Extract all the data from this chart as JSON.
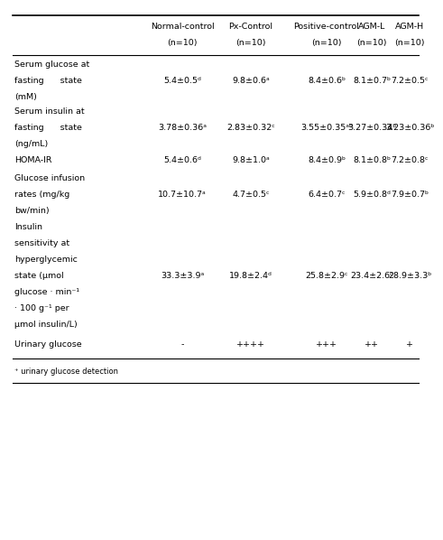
{
  "footnote": "⁺ urinary glucose detection",
  "col_headers_line1": [
    "Normal-control",
    "Px-Control",
    "Positive-control",
    "AGM-L",
    "AGM-H"
  ],
  "col_headers_line2": [
    "(n=10)",
    "(n=10)",
    "(n=10)",
    "(n=10)",
    "(n=10)"
  ],
  "rows": [
    {
      "label_lines": [
        "Serum glucose at",
        "fasting      state",
        "(mM)"
      ],
      "val_line": 1,
      "bold": false,
      "values": [
        "5.4±0.5ᵈ",
        "9.8±0.6ᵃ",
        "8.4±0.6ᵇ",
        "8.1±0.7ᵇ",
        "7.2±0.5ᶜ"
      ]
    },
    {
      "label_lines": [
        "Serum insulin at",
        "fasting      state",
        "(ng/mL)"
      ],
      "val_line": 1,
      "bold": false,
      "values": [
        "3.78±0.36ᵃ",
        "2.83±0.32ᶜ",
        "3.55±0.35ᵃᵇ",
        "3.27±0.34ᵇ",
        "3.23±0.36ᵇ"
      ]
    },
    {
      "label_lines": [
        "HOMA-IR"
      ],
      "val_line": 0,
      "bold": false,
      "values": [
        "5.4±0.6ᵈ",
        "9.8±1.0ᵃ",
        "8.4±0.9ᵇ",
        "8.1±0.8ᵇ",
        "7.2±0.8ᶜ"
      ]
    },
    {
      "label_lines": [
        "Glucose infusion",
        "rates (mg/kg",
        "bw/min)"
      ],
      "val_line": 1,
      "bold": false,
      "values": [
        "10.7±10.7ᵃ",
        "4.7±0.5ᶜ",
        "6.4±0.7ᶜ",
        "5.9±0.8ᵈ",
        "7.9±0.7ᵇ"
      ]
    },
    {
      "label_lines": [
        "Insulin",
        "sensitivity at",
        "hyperglycemic",
        "state (μmol",
        "glucose · min⁻¹",
        "· 100 g⁻¹ per",
        "μmol insulin/L)"
      ],
      "val_line": 3,
      "bold": false,
      "values": [
        "33.3±3.9ᵃ",
        "19.8±2.4ᵈ",
        "25.8±2.9ᶜ",
        "23.4±2.6ᶜ",
        "28.9±3.3ᵇ"
      ]
    },
    {
      "label_lines": [
        "Urinary glucose"
      ],
      "val_line": 0,
      "bold": false,
      "values": [
        "-",
        "++++",
        "+++",
        "++",
        "+"
      ]
    }
  ]
}
